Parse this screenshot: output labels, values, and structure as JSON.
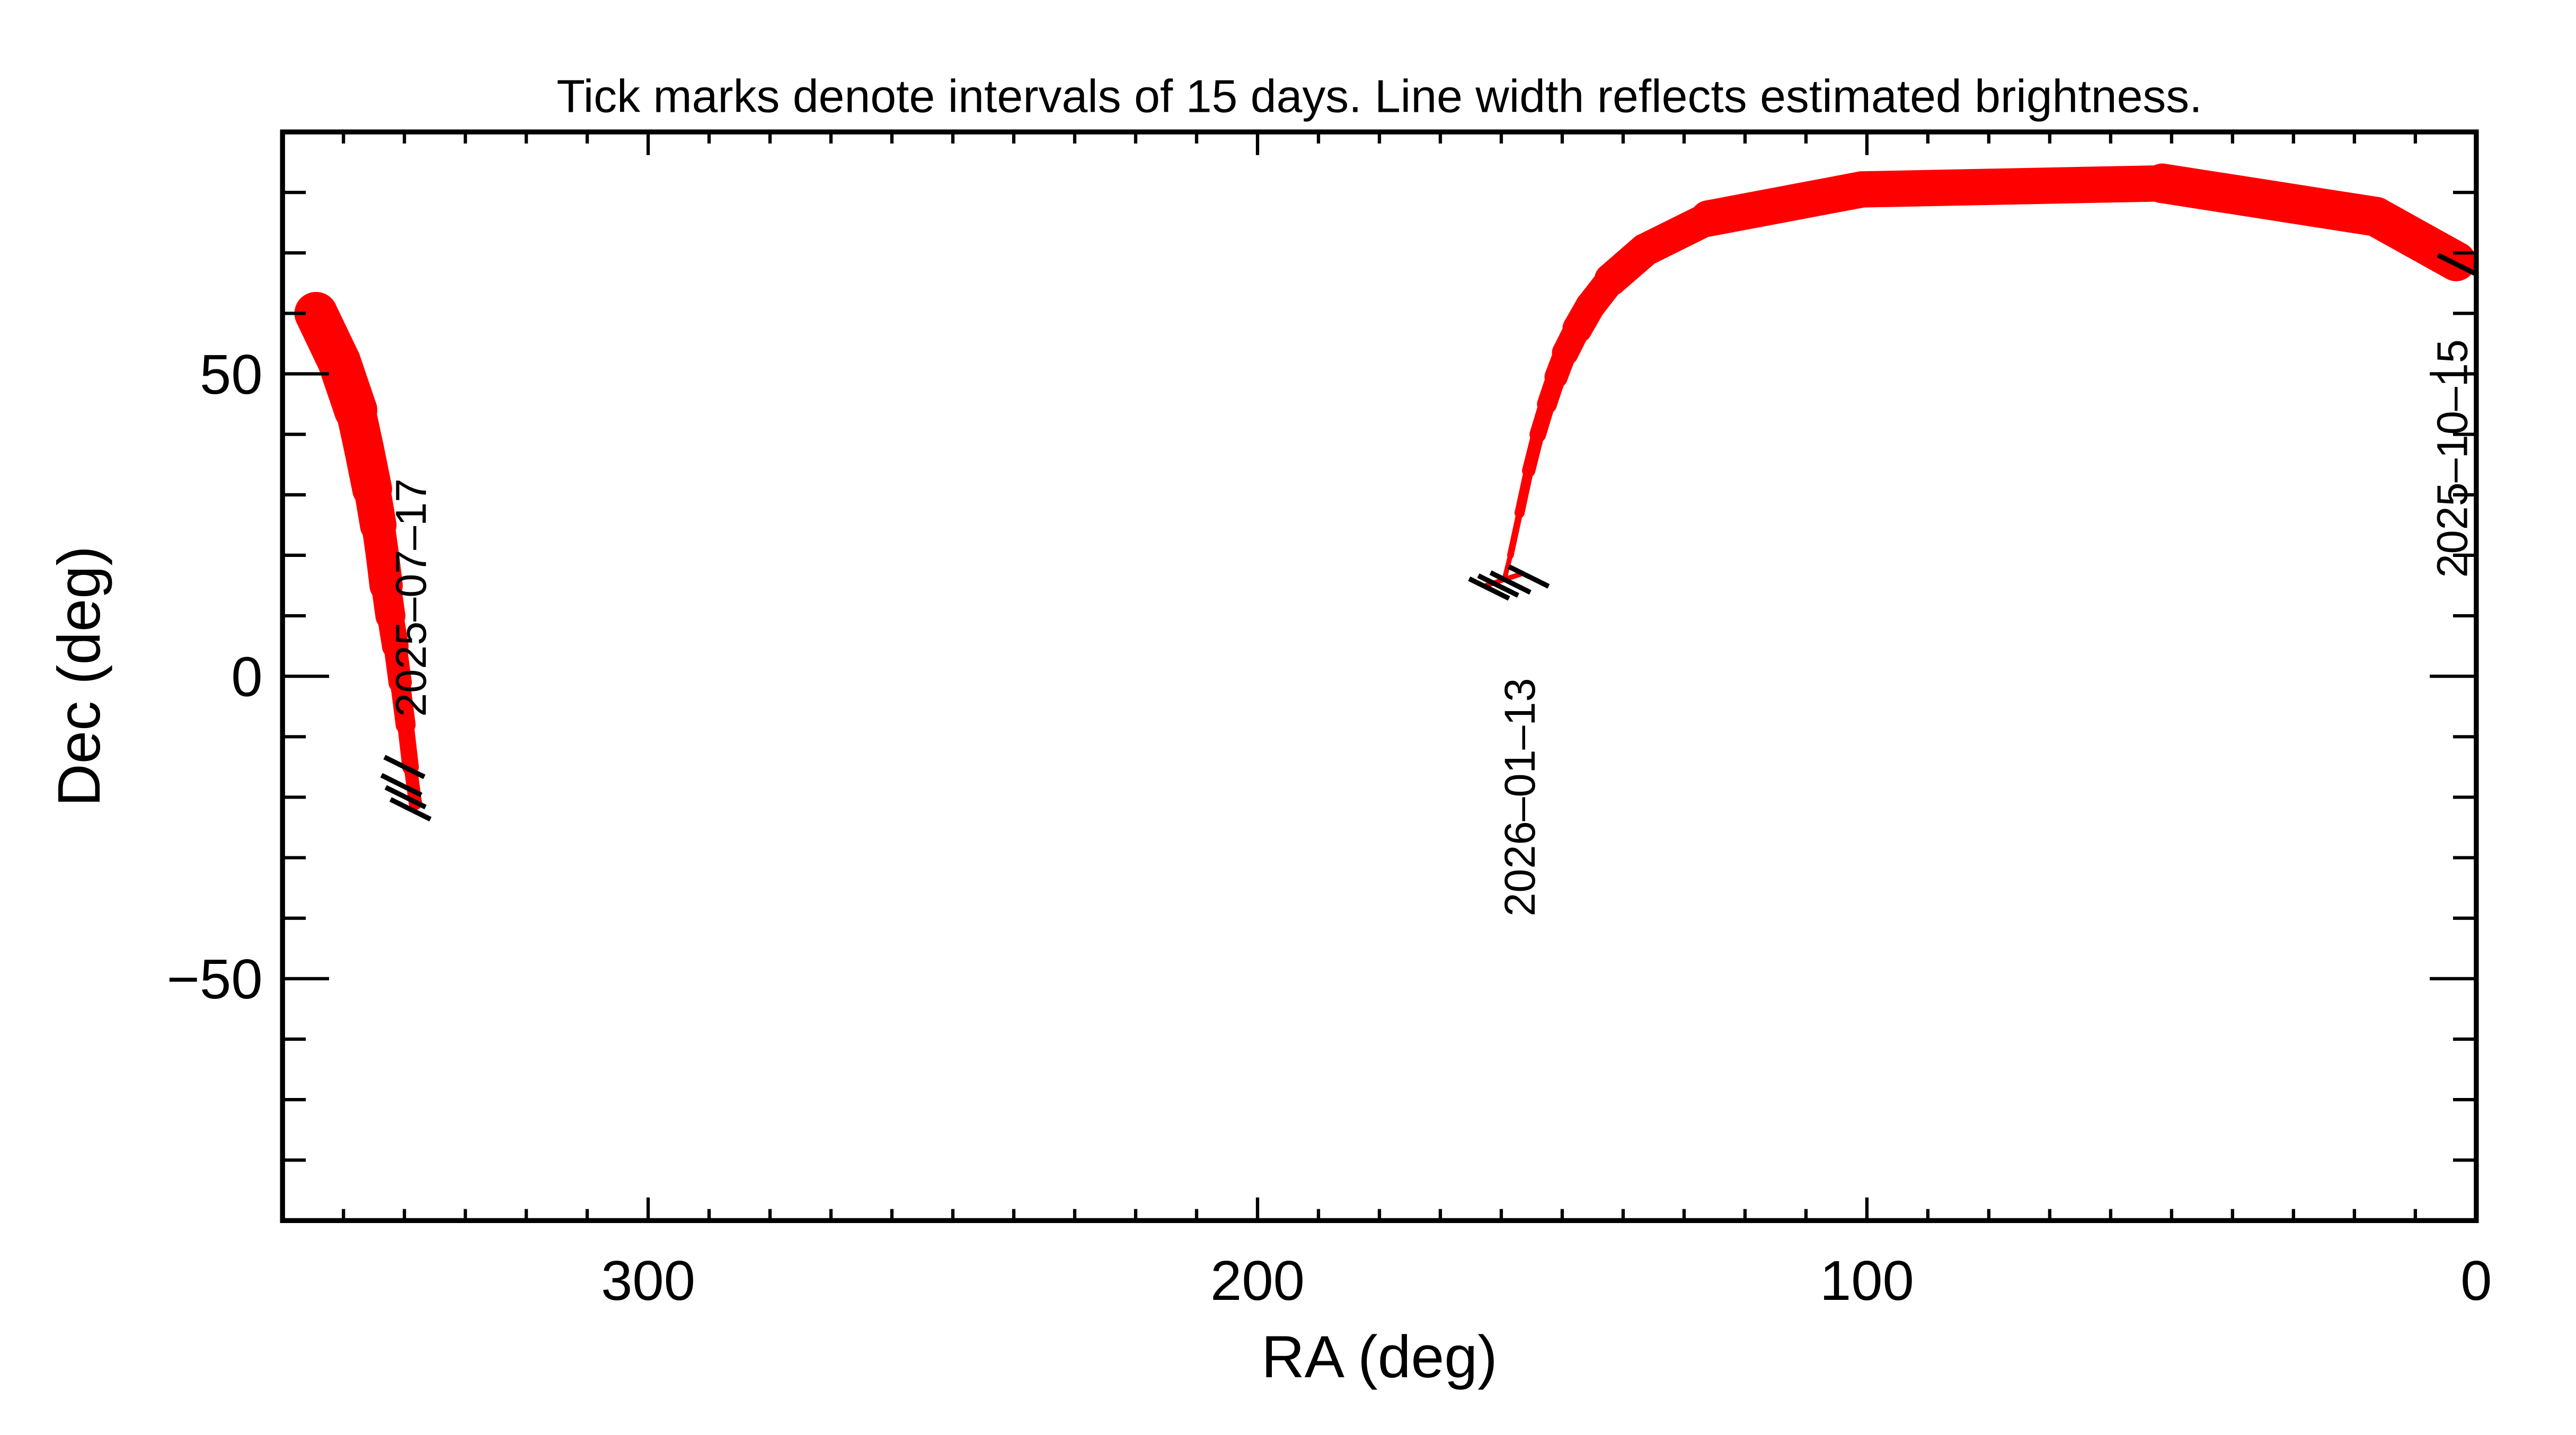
{
  "chart_data": {
    "type": "scatter",
    "title": "Tick marks denote intervals of 15 days.  Line width reflects estimated brightness.",
    "xlabel": "RA (deg)",
    "ylabel": "Dec (deg)",
    "xlim": [
      360,
      0
    ],
    "ylim": [
      -90,
      90
    ],
    "x_ticks": [
      300,
      200,
      100,
      0
    ],
    "y_ticks": [
      50,
      0,
      -50
    ],
    "y_tick_labels": [
      "50",
      "0",
      "−50"
    ],
    "grid": false,
    "marker_color": "#ff0000",
    "track_segments": [
      {
        "points": [
          [
            338.2,
            -21,
            4
          ],
          [
            339,
            -15,
            5
          ],
          [
            339.8,
            -8,
            6
          ],
          [
            340.7,
            -1,
            7
          ],
          [
            341.5,
            5,
            8
          ],
          [
            342.3,
            10,
            9
          ],
          [
            343,
            15,
            10
          ],
          [
            343.6,
            20,
            10
          ],
          [
            344.3,
            25,
            11
          ],
          [
            345.3,
            31,
            12
          ],
          [
            346.6,
            37.5,
            12
          ],
          [
            348,
            44,
            13
          ],
          [
            350.7,
            52,
            13
          ],
          [
            354.5,
            60,
            13
          ]
        ]
      },
      {
        "points": [
          [
            3.3,
            68.6,
            12
          ],
          [
            16.5,
            76,
            12
          ],
          [
            51.5,
            81.5,
            12
          ],
          [
            100.8,
            80.5,
            11
          ],
          [
            126,
            75.7,
            11
          ],
          [
            136.4,
            70.5,
            10
          ],
          [
            142,
            65.6,
            10
          ],
          [
            145.4,
            61.2,
            9
          ],
          [
            147.5,
            57.5,
            9
          ],
          [
            149.5,
            53.5,
            8
          ],
          [
            151,
            49.5,
            7
          ],
          [
            152.5,
            45,
            6
          ],
          [
            154,
            40,
            5
          ],
          [
            155.5,
            34,
            4
          ],
          [
            157,
            27,
            3
          ],
          [
            158.5,
            20,
            2
          ],
          [
            159.5,
            16,
            1.5
          ],
          [
            156.5,
            17,
            1.5
          ],
          [
            162.5,
            15,
            1.5
          ]
        ]
      }
    ],
    "date_ticks": [
      [
        340,
        -15
      ],
      [
        340.5,
        -18
      ],
      [
        339.8,
        -20
      ],
      [
        339,
        -22
      ],
      [
        3,
        68
      ],
      [
        162,
        14.5
      ],
      [
        160.5,
        15
      ],
      [
        158.5,
        15.5
      ],
      [
        155.5,
        16.5
      ]
    ],
    "annotations": [
      {
        "text": "2025–07–17",
        "ra": 336.5,
        "dec": 13
      },
      {
        "text": "2026–01–13",
        "ra": 154.5,
        "dec": -20
      },
      {
        "text": "2025–10–15",
        "ra": 1.5,
        "dec": 36
      }
    ]
  }
}
